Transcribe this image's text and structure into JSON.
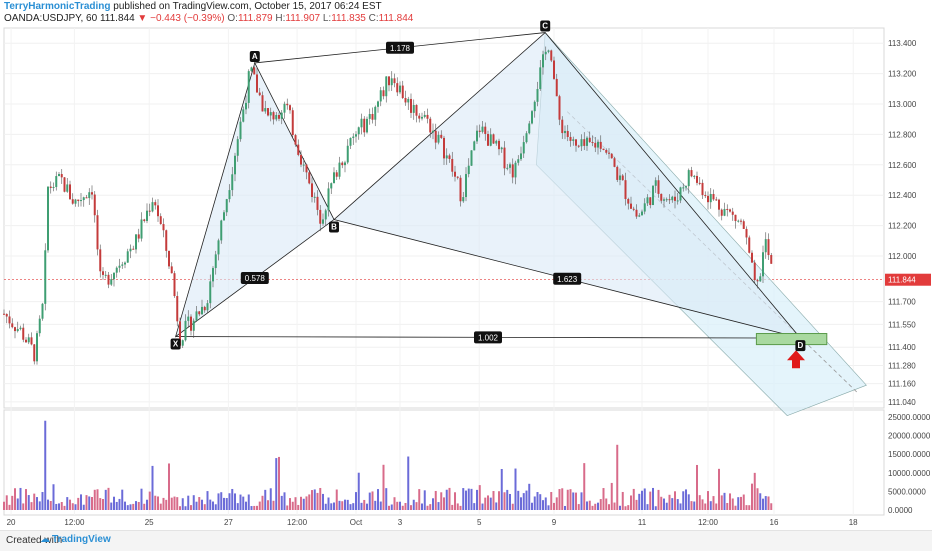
{
  "header": {
    "author": "TerryHarmonicTrading",
    "published": "published on TradingView.com, October 15, 2017 06:24 EST",
    "symbol": "OANDA:USDJPY, 60",
    "last": "111.844",
    "change": "−0.443 (−0.39%)",
    "o_label": "O:",
    "o_value": "111.879",
    "h_label": "H:",
    "h_value": "111.907",
    "l_label": "L:",
    "l_value": "111.835",
    "c_label": "C:",
    "c_value": "111.844"
  },
  "footer": {
    "created_with": "Created with",
    "brand": "TradingView"
  },
  "colors": {
    "up": "#3f9e72",
    "down": "#c43b3b",
    "pattern_fill": "#dbeaf7",
    "channel_fill": "#d9f0fa",
    "accent": "#2a8fd4",
    "zone": "#a9d9a0"
  },
  "chart_data": {
    "type": "line",
    "symbol": "OANDA:USDJPY",
    "interval": "60",
    "y_axis_ticks": [
      "113.400",
      "113.200",
      "113.000",
      "112.800",
      "112.600",
      "112.400",
      "112.200",
      "112.000",
      "111.700",
      "111.550",
      "111.400",
      "111.280",
      "111.160",
      "111.040"
    ],
    "x_axis_ticks": [
      "20",
      "12:00",
      "25",
      "27",
      "12:00",
      "Oct",
      "3",
      "5",
      "9",
      "11",
      "12:00",
      "16",
      "18"
    ],
    "last_price": 111.844,
    "price_path": [
      {
        "t": 0.0,
        "p": 111.62
      },
      {
        "t": 0.02,
        "p": 111.5
      },
      {
        "t": 0.035,
        "p": 111.35
      },
      {
        "t": 0.045,
        "p": 111.7
      },
      {
        "t": 0.05,
        "p": 112.45
      },
      {
        "t": 0.065,
        "p": 112.5
      },
      {
        "t": 0.08,
        "p": 112.35
      },
      {
        "t": 0.1,
        "p": 112.45
      },
      {
        "t": 0.11,
        "p": 111.8
      },
      {
        "t": 0.13,
        "p": 111.95
      },
      {
        "t": 0.15,
        "p": 112.1
      },
      {
        "t": 0.17,
        "p": 112.4
      },
      {
        "t": 0.19,
        "p": 111.9
      },
      {
        "t": 0.2,
        "p": 111.47
      },
      {
        "t": 0.23,
        "p": 111.7
      },
      {
        "t": 0.25,
        "p": 112.3
      },
      {
        "t": 0.28,
        "p": 113.22
      },
      {
        "t": 0.3,
        "p": 112.9
      },
      {
        "t": 0.32,
        "p": 113.0
      },
      {
        "t": 0.34,
        "p": 112.6
      },
      {
        "t": 0.36,
        "p": 112.25
      },
      {
        "t": 0.38,
        "p": 112.6
      },
      {
        "t": 0.4,
        "p": 112.8
      },
      {
        "t": 0.42,
        "p": 112.95
      },
      {
        "t": 0.44,
        "p": 113.2
      },
      {
        "t": 0.46,
        "p": 113.0
      },
      {
        "t": 0.48,
        "p": 112.9
      },
      {
        "t": 0.5,
        "p": 112.7
      },
      {
        "t": 0.52,
        "p": 112.4
      },
      {
        "t": 0.54,
        "p": 112.85
      },
      {
        "t": 0.56,
        "p": 112.7
      },
      {
        "t": 0.58,
        "p": 112.55
      },
      {
        "t": 0.6,
        "p": 113.0
      },
      {
        "t": 0.62,
        "p": 113.43
      },
      {
        "t": 0.63,
        "p": 112.9
      },
      {
        "t": 0.65,
        "p": 112.7
      },
      {
        "t": 0.68,
        "p": 112.75
      },
      {
        "t": 0.7,
        "p": 112.5
      },
      {
        "t": 0.72,
        "p": 112.25
      },
      {
        "t": 0.74,
        "p": 112.45
      },
      {
        "t": 0.76,
        "p": 112.35
      },
      {
        "t": 0.78,
        "p": 112.55
      },
      {
        "t": 0.8,
        "p": 112.4
      },
      {
        "t": 0.82,
        "p": 112.3
      },
      {
        "t": 0.84,
        "p": 112.2
      },
      {
        "t": 0.855,
        "p": 111.75
      },
      {
        "t": 0.865,
        "p": 112.1
      },
      {
        "t": 0.875,
        "p": 111.84
      }
    ],
    "harmonic_points": [
      {
        "label": "X",
        "t": 0.195,
        "p": 111.47
      },
      {
        "label": "A",
        "t": 0.285,
        "p": 113.27
      },
      {
        "label": "B",
        "t": 0.375,
        "p": 112.24
      },
      {
        "label": "C",
        "t": 0.615,
        "p": 113.47
      },
      {
        "label": "D",
        "t": 0.905,
        "p": 111.46
      }
    ],
    "ratios": [
      {
        "label": "1.178",
        "from": "A",
        "to": "C"
      },
      {
        "label": "0.578",
        "from": "X",
        "to": "B"
      },
      {
        "label": "1.623",
        "from": "B",
        "to": "D"
      },
      {
        "label": "1.002",
        "from": "X",
        "to": "D"
      }
    ],
    "volume_axis_ticks": [
      "25000.0000",
      "20000.0000",
      "15000.0000",
      "10000.0000",
      "5000.0000",
      "0.0000"
    ],
    "volume_max": 25000
  }
}
